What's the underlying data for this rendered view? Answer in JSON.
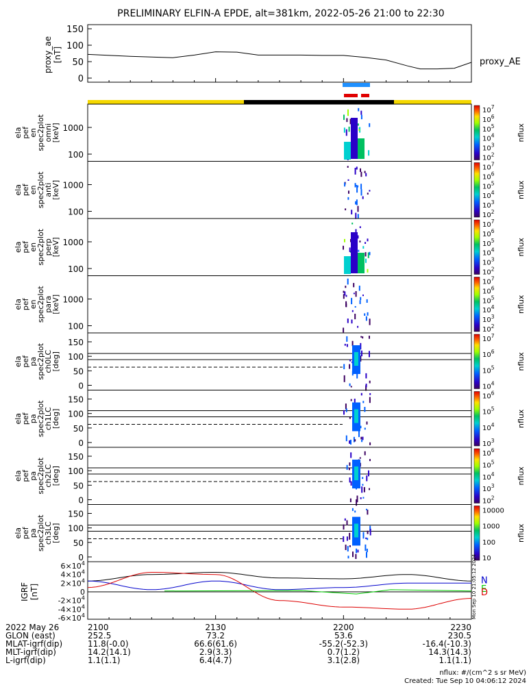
{
  "title": "PRELIMINARY ELFIN-A EPDE, alt=381km, 2022-05-26 21:00 to 22:30",
  "colors": {
    "yellow": "#f5d800",
    "black": "#000000",
    "blue_bar": "#1e90ff",
    "red_bar": "#e00000",
    "N": "#000000",
    "E": "#0000cc",
    "D": "#00cc00",
    "Dred": "#dd0000"
  },
  "ae": {
    "ylabel": "proxy_ae\n[nT]",
    "yticks": [
      "150",
      "100",
      "50",
      "0"
    ],
    "label": "proxy_AE"
  },
  "panels": [
    {
      "ylabel": [
        "ela",
        "pef",
        "en",
        "spec2plot",
        "omni",
        "[keV]"
      ],
      "yticks": [
        "1000",
        "100"
      ],
      "type": "energy"
    },
    {
      "ylabel": [
        "ela",
        "pef",
        "en",
        "spec2plot",
        "anti",
        "[keV]"
      ],
      "yticks": [
        "1000",
        "100"
      ],
      "type": "energy"
    },
    {
      "ylabel": [
        "ela",
        "pef",
        "en",
        "spec2plot",
        "perp",
        "[keV]"
      ],
      "yticks": [
        "1000",
        "100"
      ],
      "type": "energy"
    },
    {
      "ylabel": [
        "ela",
        "pef",
        "en",
        "spec2plot",
        "para",
        "[keV]"
      ],
      "yticks": [
        "1000",
        "100"
      ],
      "type": "energy"
    },
    {
      "ylabel": [
        "ela",
        "pef",
        "pa",
        "spec2plot",
        "ch0LC",
        "[deg]"
      ],
      "yticks": [
        "150",
        "100",
        "50",
        "0"
      ],
      "type": "pa"
    },
    {
      "ylabel": [
        "ela",
        "pef",
        "pa",
        "spec2plot",
        "ch1LC",
        "[deg]"
      ],
      "yticks": [
        "150",
        "100",
        "50",
        "0"
      ],
      "type": "pa"
    },
    {
      "ylabel": [
        "ela",
        "pef",
        "pa",
        "spec2plot",
        "ch2LC",
        "[deg]"
      ],
      "yticks": [
        "150",
        "100",
        "50",
        "0"
      ],
      "type": "pa"
    },
    {
      "ylabel": [
        "ela",
        "pef",
        "pa",
        "spec2plot",
        "ch3LC",
        "[deg]"
      ],
      "yticks": [
        "150",
        "100",
        "50",
        "0"
      ],
      "type": "pa"
    }
  ],
  "colorbars": [
    {
      "ticks": [
        "10^7",
        "10^6",
        "10^5",
        "10^4",
        "10^3",
        "10^2"
      ],
      "label": "nflux"
    },
    {
      "ticks": [
        "10^7",
        "10^6",
        "10^5",
        "10^4",
        "10^3",
        "10^2"
      ],
      "label": "nflux"
    },
    {
      "ticks": [
        "10^7",
        "10^6",
        "10^5",
        "10^4",
        "10^3",
        "10^2"
      ],
      "label": "nflux"
    },
    {
      "ticks": [
        "10^7",
        "10^6",
        "10^5",
        "10^4",
        "10^3",
        "10^2"
      ],
      "label": "nflux"
    },
    {
      "ticks": [
        "10^7",
        "10^6",
        "10^5",
        "10^4"
      ],
      "label": "nflux"
    },
    {
      "ticks": [
        "10^6",
        "10^5",
        "10^4",
        "10^3"
      ],
      "label": "nflux"
    },
    {
      "ticks": [
        "10^6",
        "10^5",
        "10^4",
        "10^3",
        "10^2"
      ],
      "label": "nflux"
    },
    {
      "ticks": [
        "10000",
        "1000",
        "100",
        "10"
      ],
      "label": "nflux"
    }
  ],
  "igrf": {
    "ylabel": "IGRF\n[nT]",
    "yticks": [
      "6×10^4",
      "4×10^4",
      "2×10^4",
      "0",
      "-2×10^4",
      "-4×10^4",
      "-6×10^4"
    ],
    "legend": [
      "N",
      "E",
      "D"
    ],
    "stamp": "Mon Sep 10 21:05:12 2024"
  },
  "footer": {
    "rows": [
      {
        "label": "2022 May 26",
        "values": [
          "2100",
          "2130",
          "2200",
          "2230"
        ]
      },
      {
        "label": "GLON (east)",
        "values": [
          "252.5",
          "73.2",
          "53.6",
          "230.5"
        ]
      },
      {
        "label": "MLAT-igrf(dip)",
        "values": [
          "11.8(-0.0)",
          "66.6(61.6)",
          "-55.2(-52.3)",
          "-16.4(-10.3)"
        ]
      },
      {
        "label": "MLT-igrf(dip)",
        "values": [
          "14.2(14.1)",
          "2.9(3.3)",
          "0.7(1.2)",
          "14.3(14.3)"
        ]
      },
      {
        "label": "L-igrf(dip)",
        "values": [
          "1.1(1.1)",
          "6.4(4.7)",
          "3.1(2.8)",
          "1.1(1.1)"
        ]
      }
    ],
    "note1": "nflux: #/(cm^2 s sr MeV)",
    "note2": "Created: Tue Sep 10 04:06:12 2024"
  },
  "chart_data": {
    "type": "line",
    "x_range": [
      "21:00",
      "22:30"
    ],
    "ae_series": {
      "name": "proxy_AE",
      "x_minutes": [
        0,
        10,
        20,
        25,
        30,
        35,
        40,
        45,
        50,
        55,
        60,
        65,
        70,
        75,
        78,
        82,
        86,
        90
      ],
      "values": [
        72,
        66,
        62,
        70,
        80,
        79,
        70,
        70,
        70,
        69,
        69,
        63,
        55,
        37,
        28,
        28,
        30,
        48
      ]
    },
    "igrf_series": [
      {
        "name": "N",
        "x_minutes": [
          0,
          15,
          30,
          45,
          60,
          75,
          90
        ],
        "values": [
          25000,
          40000,
          45000,
          32000,
          30000,
          40000,
          25000
        ]
      },
      {
        "name": "E",
        "x_minutes": [
          0,
          15,
          30,
          45,
          60,
          75,
          90
        ],
        "values": [
          25000,
          5000,
          25000,
          5000,
          10000,
          20000,
          20000
        ]
      },
      {
        "name": "D",
        "x_minutes": [
          0,
          15,
          30,
          45,
          60,
          75,
          90
        ],
        "values": [
          10000,
          45000,
          40000,
          -20000,
          -35000,
          -40000,
          -15000
        ]
      }
    ]
  }
}
